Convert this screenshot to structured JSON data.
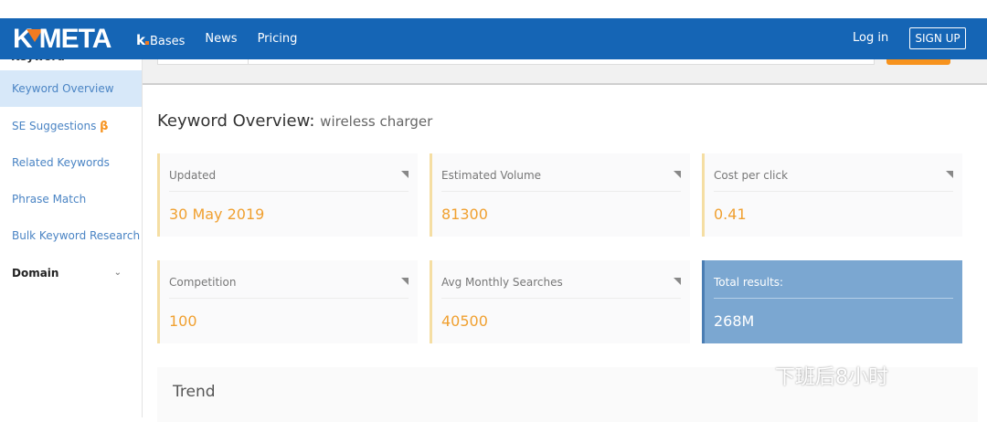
{
  "header": {
    "logo": "KMETA",
    "nav": [
      {
        "label": "Bases",
        "prefix": "k"
      },
      {
        "label": "News"
      },
      {
        "label": "Pricing"
      }
    ],
    "login": "Log in",
    "signup": "SIGN UP",
    "brand_color": "#1565b5",
    "accent": "#f27b21"
  },
  "sidebar": {
    "section": "Keyword",
    "items": [
      {
        "label": "Keyword Overview",
        "active": true
      },
      {
        "label": "SE Suggestions",
        "badge": "β"
      },
      {
        "label": "Related Keywords"
      },
      {
        "label": "Phrase Match"
      },
      {
        "label": "Bulk Keyword Research"
      }
    ],
    "domain": "Domain"
  },
  "main": {
    "title": "Keyword Overview:",
    "keyword": "wireless charger",
    "cards": [
      {
        "label": "Updated",
        "value": "30 May 2019"
      },
      {
        "label": "Estimated Volume",
        "value": "81300"
      },
      {
        "label": "Cost per click",
        "value": "0.41"
      },
      {
        "label": "Competition",
        "value": "100"
      },
      {
        "label": "Avg Monthly Searches",
        "value": "40500"
      },
      {
        "label": "Total results:",
        "value": "268M"
      }
    ],
    "trend": "Trend"
  },
  "watermark": "下班后8小时"
}
